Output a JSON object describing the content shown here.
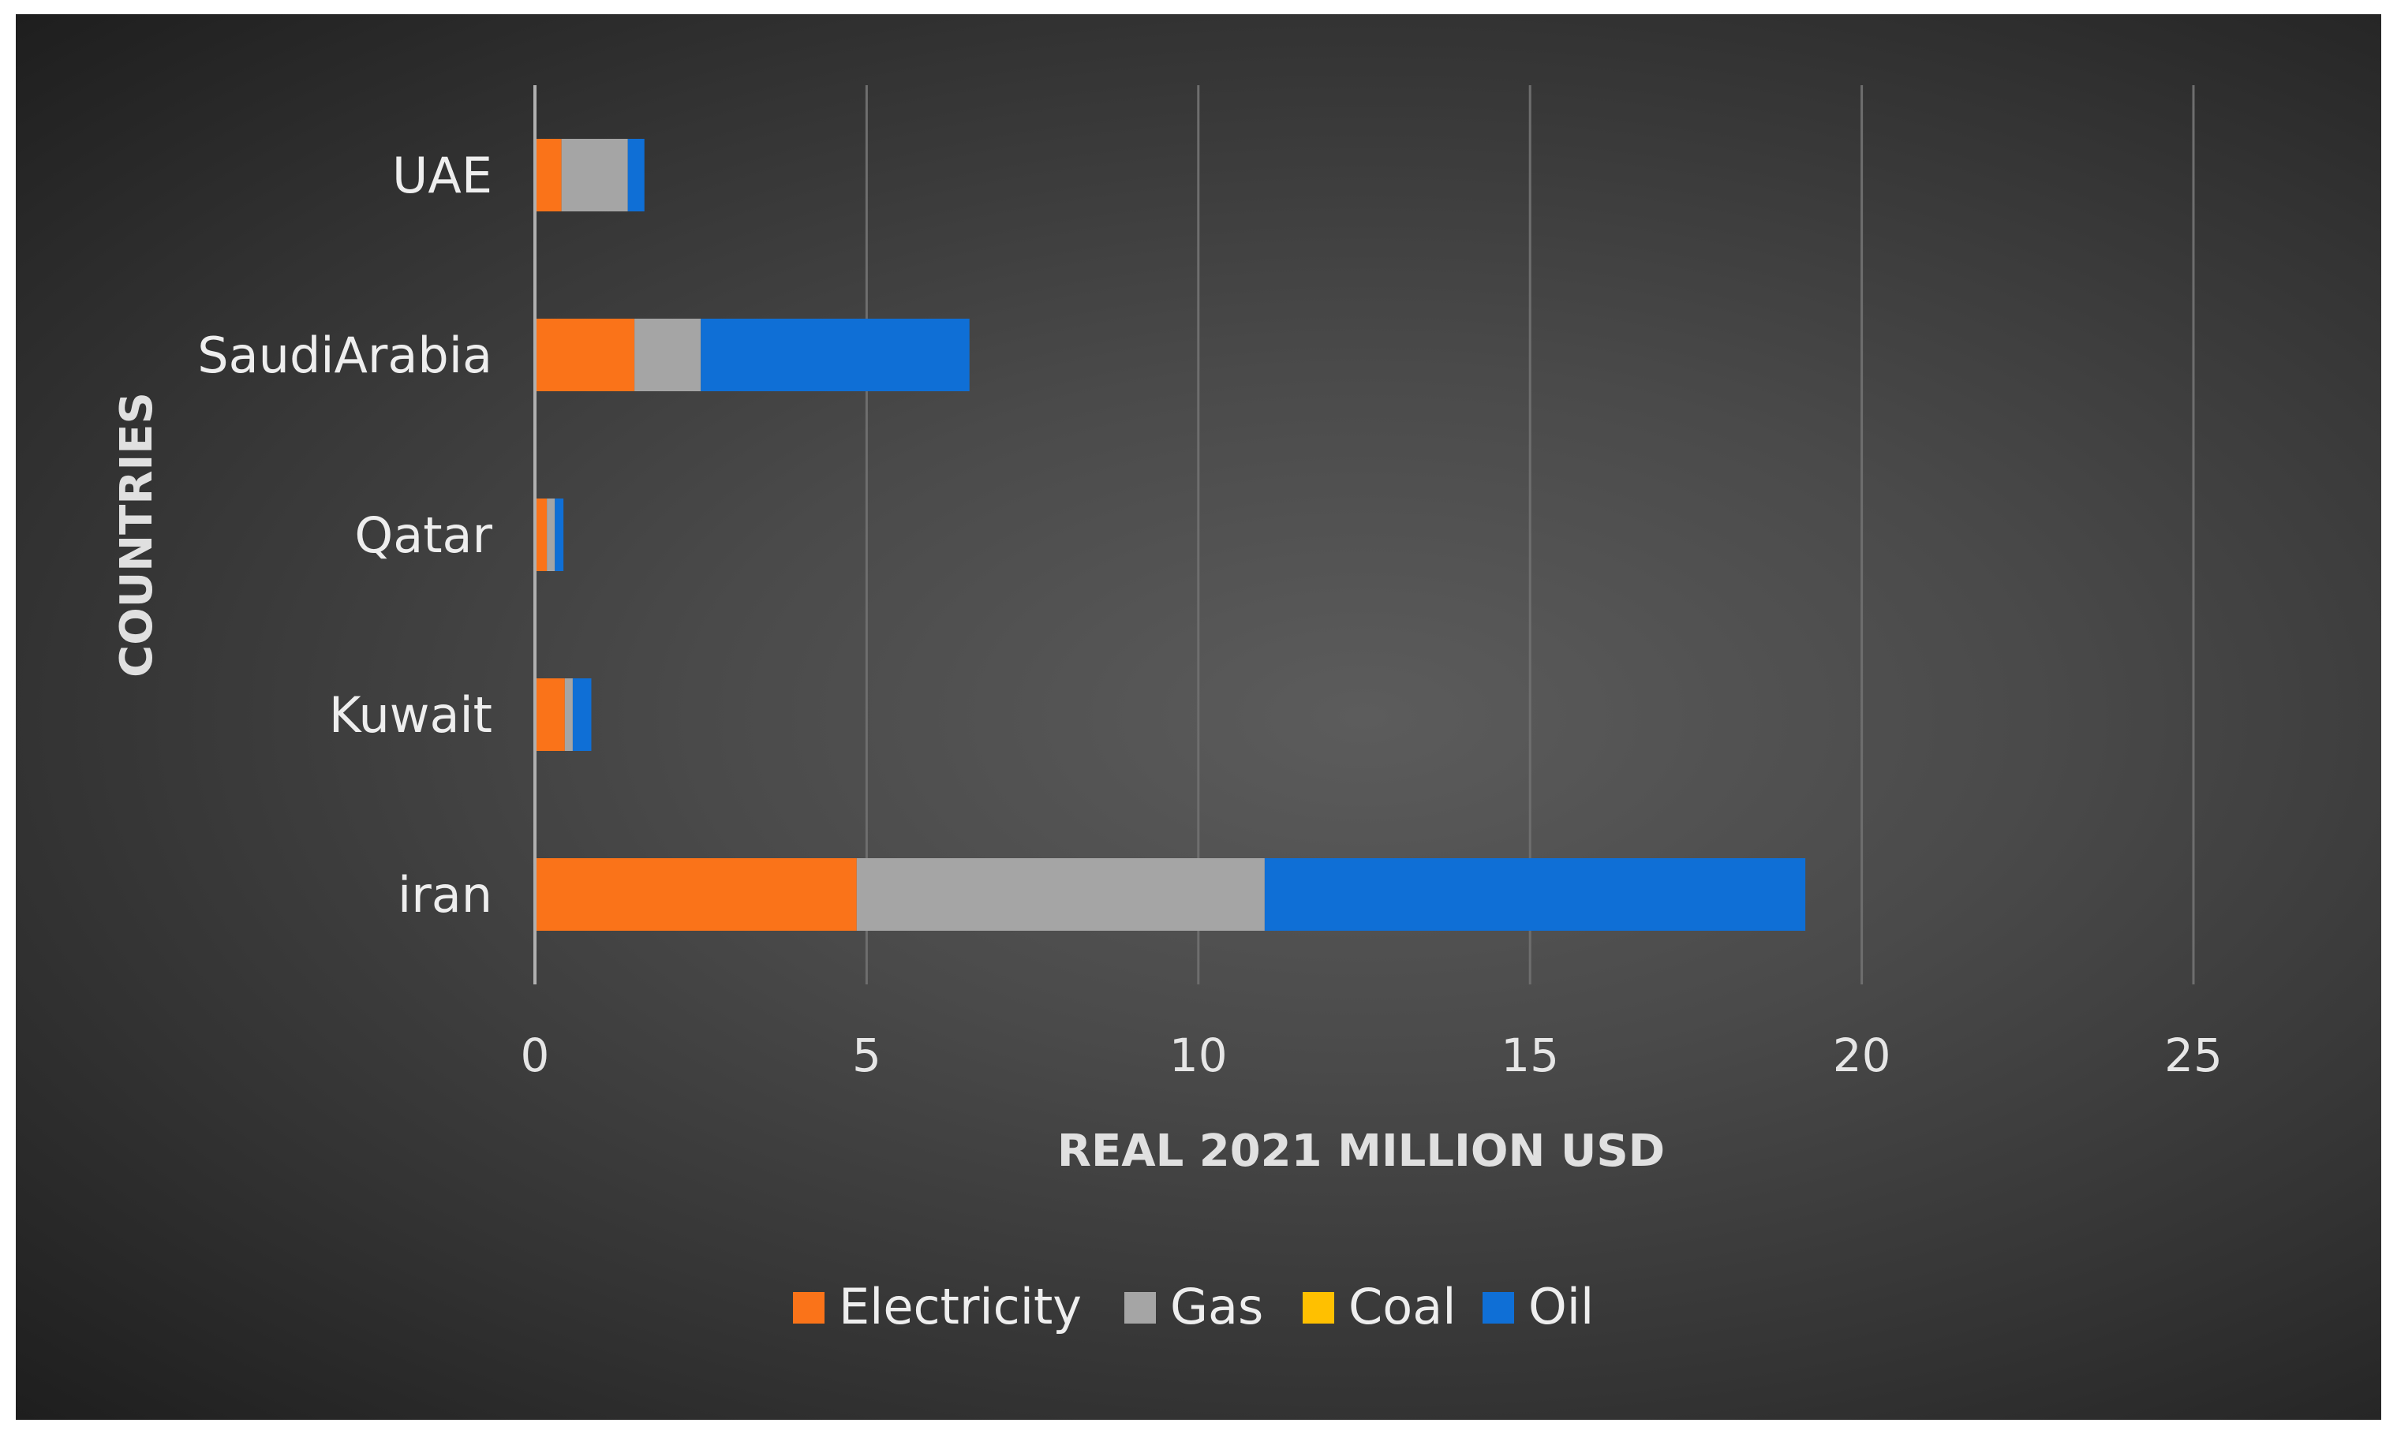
{
  "chart_data": {
    "type": "bar",
    "orientation": "horizontal",
    "stacked": true,
    "title": "",
    "xlabel": "REAL 2021 MILLION USD",
    "ylabel": "COUNTRIES",
    "xlim": [
      0,
      25
    ],
    "xticks": [
      0,
      5,
      10,
      15,
      20,
      25
    ],
    "grid": "vertical",
    "legend_position": "bottom",
    "categories": [
      "iran",
      "Kuwait",
      "Qatar",
      "SaudiArabia",
      "UAE"
    ],
    "series": [
      {
        "name": "Electricity",
        "color": "#fa7319",
        "values": [
          4.85,
          0.45,
          0.18,
          1.5,
          0.4
        ]
      },
      {
        "name": "Gas",
        "color": "#a5a5a5",
        "values": [
          6.15,
          0.12,
          0.12,
          1.0,
          1.0
        ]
      },
      {
        "name": "Coal",
        "color": "#ffc000",
        "values": [
          0,
          0,
          0,
          0,
          0
        ]
      },
      {
        "name": "Oil",
        "color": "#0f6fd6",
        "values": [
          8.15,
          0.28,
          0.13,
          4.05,
          0.25
        ]
      }
    ]
  }
}
